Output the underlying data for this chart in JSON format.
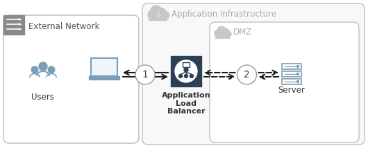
{
  "bg_color": "#ffffff",
  "dark_blue": "#2b3f55",
  "gray_border": "#b0b0b0",
  "gray_header": "#8a8a8a",
  "light_gray_fill": "#f5f5f5",
  "icon_blue": "#7a9eb5",
  "arrow_black": "#1a1a1a",
  "text_dark": "#333333",
  "text_gray": "#999999",
  "circle_edge": "#999999",
  "title_ext": "External Network",
  "title_app": "Application Infrastructure",
  "title_dmz": "DMZ",
  "label_users": "Users",
  "label_alb": "Application\nLoad\nBalancer",
  "label_server": "Server",
  "label_1": "1",
  "label_2": "2"
}
